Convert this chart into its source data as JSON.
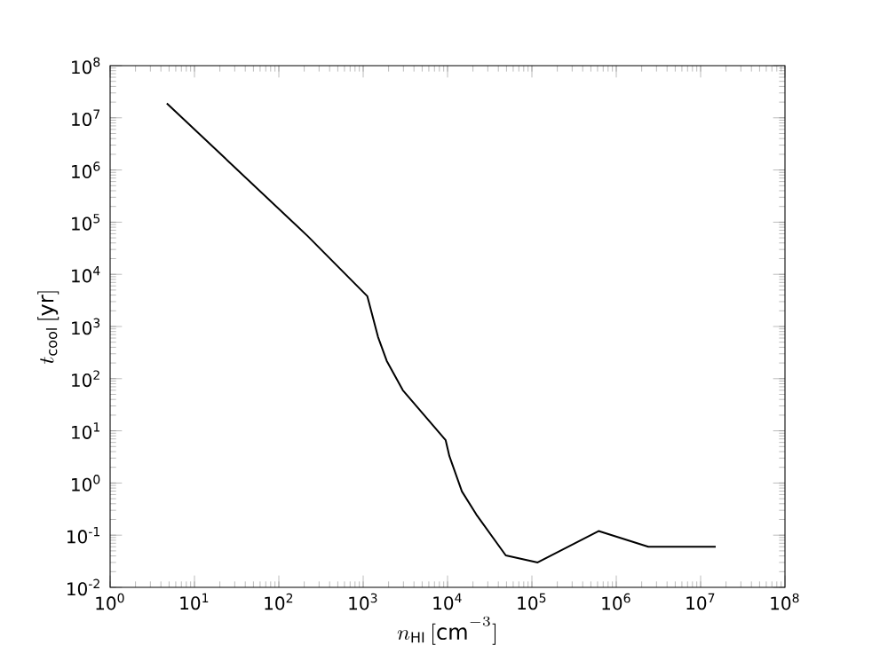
{
  "chart_data": {
    "type": "line",
    "xlabel": "n_{\\rm HI}\\,[{\\rm cm}^{-3}]",
    "ylabel": "t_{\\rm cool}\\,[{\\rm yr}]",
    "log": "xy",
    "grid": false,
    "marker": "none",
    "line_style": "solid",
    "xlim": [
      1,
      100000000
    ],
    "ylim": [
      0.01,
      100000000
    ],
    "xticks": [
      {
        "value": 1,
        "label": "10$^{0}$"
      },
      {
        "value": 10,
        "label": "10$^{1}$"
      },
      {
        "value": 100,
        "label": "10$^{2}$"
      },
      {
        "value": 1000,
        "label": "10$^{3}$"
      },
      {
        "value": 10000,
        "label": "10$^{4}$"
      },
      {
        "value": 100000,
        "label": "10$^{5}$"
      },
      {
        "value": 1000000,
        "label": "10$^{6}$"
      },
      {
        "value": 10000000,
        "label": "10$^{7}$"
      },
      {
        "value": 100000000,
        "label": "10$^{8}$"
      }
    ],
    "yticks": [
      {
        "value": 0.01,
        "label": "10$^{-2}$"
      },
      {
        "value": 0.1,
        "label": "10$^{-1}$"
      },
      {
        "value": 1,
        "label": "10$^{0}$"
      },
      {
        "value": 10,
        "label": "10$^{1}$"
      },
      {
        "value": 100,
        "label": "10$^{2}$"
      },
      {
        "value": 1000,
        "label": "10$^{3}$"
      },
      {
        "value": 10000,
        "label": "10$^{4}$"
      },
      {
        "value": 100000,
        "label": "10$^{5}$"
      },
      {
        "value": 1000000,
        "label": "10$^{6}$"
      },
      {
        "value": 10000000,
        "label": "10$^{7}$"
      },
      {
        "value": 100000000,
        "label": "10$^{8}$"
      }
    ],
    "x": [
      4.7,
      220,
      1120,
      1500,
      1900,
      2950,
      9500,
      10500,
      14800,
      21900,
      49000,
      117000,
      617000,
      2400000,
      15100000
    ],
    "series": [
      {
        "color": "#000000",
        "values": [
          19000000,
          54000,
          3800,
          630,
          220,
          60,
          6.6,
          3.3,
          0.69,
          0.25,
          0.041,
          0.03,
          0.12,
          0.06,
          0.06
        ]
      }
    ]
  }
}
